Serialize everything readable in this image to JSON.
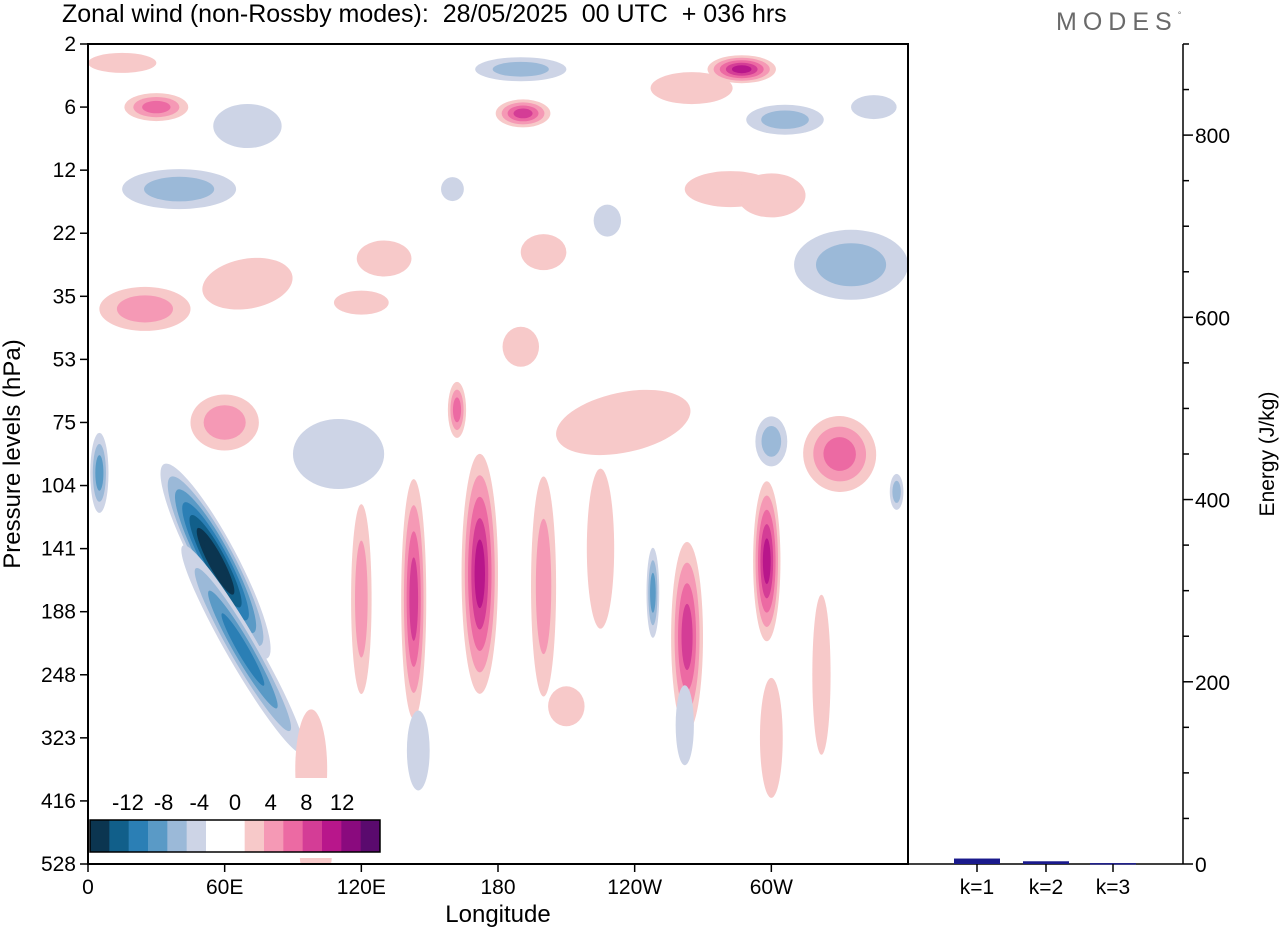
{
  "title": "Zonal wind (non-Rossby modes):  28/05/2025  00 UTC  + 036 hrs",
  "brand": "MODES",
  "chart_data": [
    {
      "type": "heatmap",
      "xlabel": "Longitude",
      "ylabel": "Pressure levels (hPa)",
      "x_ticks": [
        "0",
        "60E",
        "120E",
        "180",
        "120W",
        "60W"
      ],
      "x_tick_degrees": [
        0,
        60,
        120,
        180,
        240,
        300
      ],
      "xlim": [
        0,
        360
      ],
      "y_ticks": [
        "2",
        "6",
        "12",
        "22",
        "35",
        "53",
        "75",
        "104",
        "141",
        "188",
        "248",
        "323",
        "416",
        "528"
      ],
      "colorbar": {
        "labels": [
          "-12",
          "-8",
          "-4",
          "0",
          "4",
          "8",
          "12"
        ],
        "levels": [
          -14,
          -12,
          -10,
          -8,
          -6,
          -4,
          -2,
          0,
          2,
          4,
          6,
          8,
          10,
          12,
          14
        ],
        "colors": [
          "#0b3550",
          "#115f8a",
          "#2b7fb5",
          "#5a9ac6",
          "#9bb9d8",
          "#cdd4e6",
          "#ffffff",
          "#ffffff",
          "#f7c9c9",
          "#f599b5",
          "#ec6aa3",
          "#d43d96",
          "#b8168b",
          "#8a0a7e",
          "#5a0a6e"
        ]
      },
      "features": [
        {
          "name": "easterly-core",
          "lon": 42,
          "level": "141",
          "value": -14
        },
        {
          "name": "westerly-core-1",
          "lon": 172,
          "level": "141",
          "value": 10
        },
        {
          "name": "westerly-core-2",
          "lon": 143,
          "level": "141",
          "value": 6
        },
        {
          "name": "westerly-core-3",
          "lon": 260,
          "level": "188",
          "value": 8
        },
        {
          "name": "westerly-core-4",
          "lon": 299,
          "level": "141",
          "value": 10
        },
        {
          "name": "easterly-minor",
          "lon": 248,
          "level": "141",
          "value": -6
        },
        {
          "name": "stratospheric-max",
          "lon": 287,
          "level": "2",
          "value": 10
        }
      ]
    },
    {
      "type": "bar",
      "categories": [
        "k=1",
        "k=2",
        "k=3"
      ],
      "values": [
        6,
        3,
        1
      ],
      "ylabel": "Energy (J/kg)",
      "ylim": [
        0,
        900
      ],
      "y_ticks": [
        0,
        200,
        400,
        600,
        800
      ],
      "bar_color": "#1a1a8c"
    }
  ]
}
